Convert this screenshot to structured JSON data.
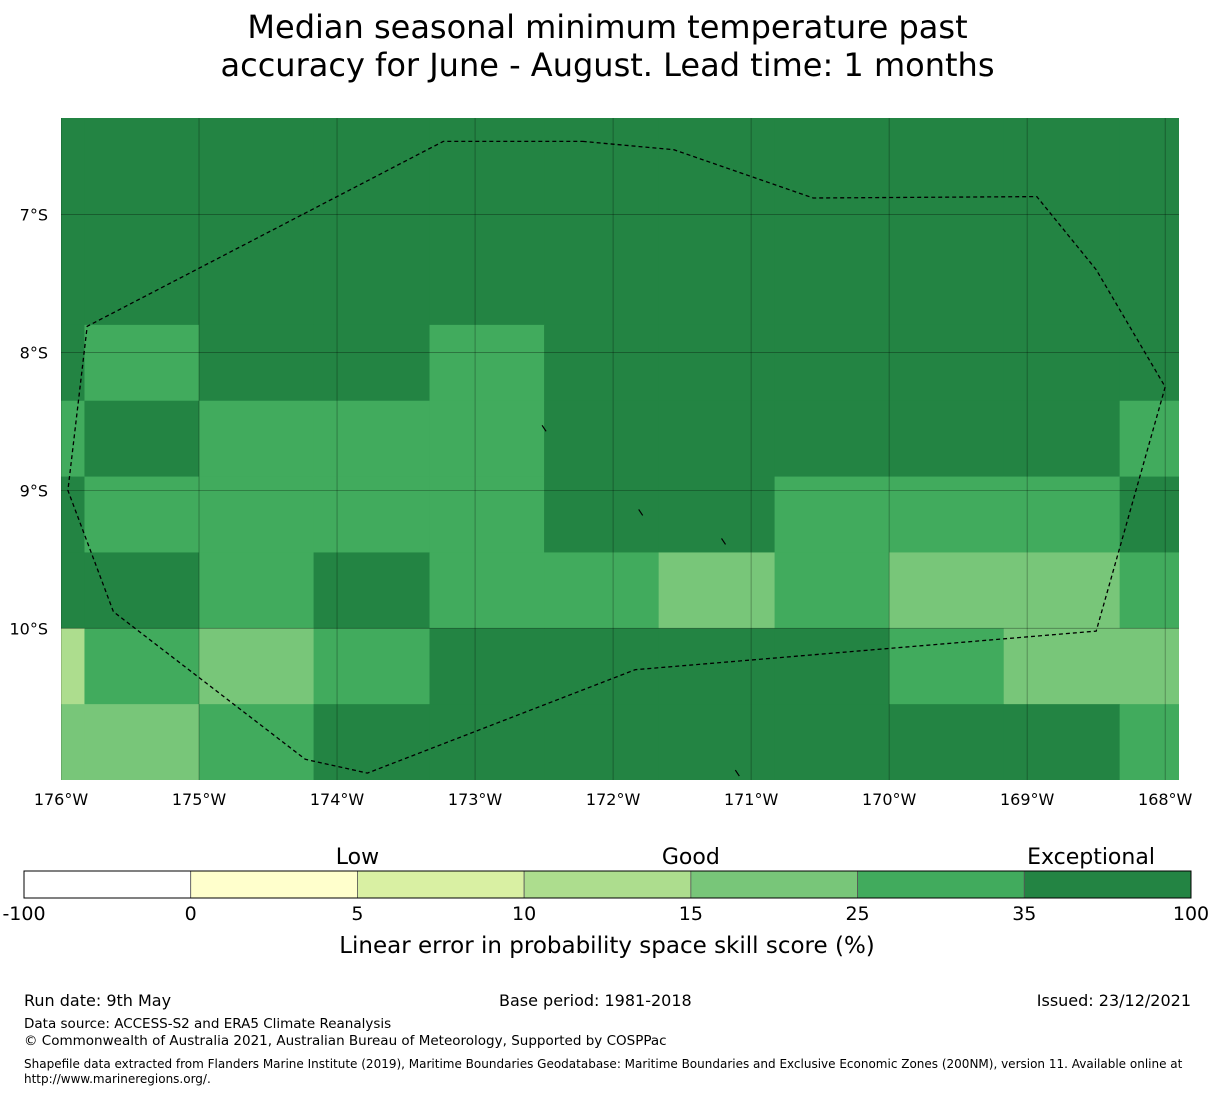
{
  "title": {
    "line1": "Median seasonal minimum temperature past",
    "line2": "accuracy for June - August. Lead time: 1 months"
  },
  "map": {
    "lon_range": [
      -176.0,
      -167.9
    ],
    "lat_range": [
      -11.1,
      -6.3
    ],
    "lon_ticks": [
      {
        "value": -176,
        "label": "176°W"
      },
      {
        "value": -175,
        "label": "175°W"
      },
      {
        "value": -174,
        "label": "174°W"
      },
      {
        "value": -173,
        "label": "173°W"
      },
      {
        "value": -172,
        "label": "172°W"
      },
      {
        "value": -171,
        "label": "171°W"
      },
      {
        "value": -170,
        "label": "170°W"
      },
      {
        "value": -169,
        "label": "169°W"
      },
      {
        "value": -168,
        "label": "168°W"
      }
    ],
    "lat_ticks": [
      {
        "value": -7,
        "label": "7°S"
      },
      {
        "value": -8,
        "label": "8°S"
      },
      {
        "value": -9,
        "label": "9°S"
      },
      {
        "value": -10,
        "label": "10°S"
      }
    ],
    "cell_size_deg": 0.833,
    "column_west_edges": [
      -176.8,
      -175.83,
      -175.0,
      -174.17,
      -173.33,
      -172.5,
      -171.67,
      -170.83,
      -170.0,
      -169.17,
      -168.33
    ],
    "row_north_edges": [
      -6.3,
      -7.8,
      -8.35,
      -8.9,
      -9.45,
      -10.0,
      -10.55
    ],
    "row_south_edges": [
      -7.8,
      -8.35,
      -8.9,
      -9.45,
      -10.0,
      -10.55,
      -11.1
    ],
    "skill_grid": [
      [
        40,
        40,
        40,
        40,
        40,
        40,
        40,
        40,
        40,
        40,
        40
      ],
      [
        40,
        30,
        40,
        40,
        30,
        40,
        40,
        40,
        40,
        40,
        40
      ],
      [
        30,
        40,
        30,
        30,
        30,
        40,
        40,
        40,
        40,
        40,
        30
      ],
      [
        40,
        30,
        30,
        30,
        30,
        40,
        40,
        30,
        30,
        30,
        40
      ],
      [
        40,
        40,
        30,
        40,
        30,
        30,
        20,
        30,
        20,
        20,
        30
      ],
      [
        13,
        30,
        20,
        30,
        40,
        40,
        40,
        40,
        30,
        20,
        20
      ],
      [
        20,
        20,
        30,
        40,
        40,
        40,
        40,
        40,
        40,
        40,
        30
      ]
    ],
    "eez_boundary": [
      [
        -172.22,
        -6.47
      ],
      [
        -171.56,
        -6.53
      ],
      [
        -170.55,
        -6.88
      ],
      [
        -168.93,
        -6.87
      ],
      [
        -168.5,
        -7.4
      ],
      [
        -168.0,
        -8.25
      ],
      [
        -168.5,
        -10.02
      ],
      [
        -171.84,
        -10.3
      ],
      [
        -173.78,
        -11.05
      ],
      [
        -174.23,
        -10.95
      ],
      [
        -175.62,
        -9.88
      ],
      [
        -175.95,
        -9.0
      ],
      [
        -175.81,
        -7.81
      ],
      [
        -173.23,
        -6.47
      ],
      [
        -172.22,
        -6.47
      ]
    ],
    "islets": [
      {
        "lon": -172.5,
        "lat": -8.55
      },
      {
        "lon": -171.8,
        "lat": -9.16
      },
      {
        "lon": -171.2,
        "lat": -9.37
      },
      {
        "lon": -171.1,
        "lat": -11.05
      }
    ]
  },
  "colorbar": {
    "boundaries": [
      {
        "value": -100,
        "label": "-100"
      },
      {
        "value": 0,
        "label": "0"
      },
      {
        "value": 5,
        "label": "5"
      },
      {
        "value": 10,
        "label": "10"
      },
      {
        "value": 15,
        "label": "15"
      },
      {
        "value": 25,
        "label": "25"
      },
      {
        "value": 35,
        "label": "35"
      },
      {
        "value": 100,
        "label": "100"
      }
    ],
    "colors": [
      "#ffffff",
      "#ffffcc",
      "#d9f0a3",
      "#addd8e",
      "#78c679",
      "#41ab5d",
      "#238443"
    ],
    "category_labels": [
      {
        "text": "Low",
        "at_value": 5
      },
      {
        "text": "Good",
        "at_value": 15
      },
      {
        "text": "Exceptional",
        "at_value": 100
      }
    ],
    "axis_label": "Linear error in probability space skill score (%)"
  },
  "footer": {
    "run_date": "Run date: 9th May",
    "base_period": "Base period: 1981-2018",
    "issued": "Issued: 23/12/2021",
    "data_source": "Data source: ACCESS-S2 and ERA5 Climate Reanalysis",
    "copyright": "© Commonwealth of Australia 2021, Australian Bureau of Meteorology, Supported by COSPPac",
    "shapefile": "Shapefile data extracted from Flanders Marine Institute (2019), Maritime Boundaries Geodatabase: Maritime Boundaries and Exclusive Economic Zones (200NM), version 11. Available online at http://www.marineregions.org/."
  }
}
